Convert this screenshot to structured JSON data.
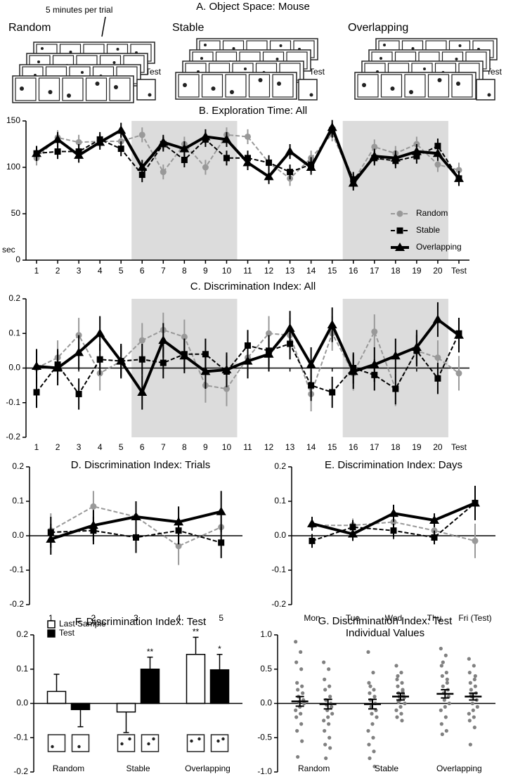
{
  "schematic": {
    "title": "A. Object Space: Mouse",
    "note": "5 minutes per trial",
    "groups": [
      {
        "label": "Random",
        "test": "Test"
      },
      {
        "label": "Stable",
        "test": "Test"
      },
      {
        "label": "Overlapping",
        "test": "Test"
      }
    ]
  },
  "chart_data": [
    {
      "type": "line",
      "title": "B. Exploration Time: All",
      "ylabel": "sec",
      "categories": [
        "1",
        "2",
        "3",
        "4",
        "5",
        "6",
        "7",
        "8",
        "9",
        "10",
        "11",
        "12",
        "13",
        "14",
        "15",
        "16",
        "17",
        "18",
        "19",
        "20",
        "Test"
      ],
      "shaded": [
        {
          "from": "6",
          "to": "10"
        },
        {
          "from": "16",
          "to": "20"
        }
      ],
      "ylim": [
        0,
        150
      ],
      "yticks": [
        0,
        50,
        100,
        150
      ],
      "legend": "bottom-right",
      "series": [
        {
          "name": "Random",
          "color": "#999999",
          "marker": "circle",
          "dash": true,
          "values": [
            110,
            132,
            127,
            128,
            128,
            135,
            95,
            125,
            100,
            135,
            133,
            105,
            88,
            110,
            136,
            85,
            122,
            115,
            125,
            103,
            97
          ],
          "errors": [
            8,
            8,
            8,
            8,
            8,
            8,
            8,
            8,
            8,
            8,
            8,
            8,
            8,
            8,
            8,
            8,
            8,
            8,
            8,
            8,
            8
          ]
        },
        {
          "name": "Stable",
          "color": "#000000",
          "marker": "square",
          "dash": true,
          "values": [
            115,
            117,
            117,
            130,
            120,
            92,
            125,
            108,
            130,
            110,
            110,
            105,
            95,
            103,
            140,
            87,
            110,
            107,
            112,
            123,
            88
          ],
          "errors": [
            8,
            8,
            8,
            8,
            8,
            8,
            8,
            8,
            8,
            8,
            8,
            8,
            8,
            8,
            8,
            8,
            8,
            8,
            8,
            8,
            8
          ]
        },
        {
          "name": "Overlapping",
          "color": "#000000",
          "marker": "triangle",
          "dash": false,
          "values": [
            115,
            130,
            113,
            127,
            140,
            100,
            127,
            120,
            133,
            130,
            105,
            90,
            117,
            100,
            143,
            83,
            112,
            110,
            117,
            115,
            88
          ],
          "errors": [
            8,
            8,
            8,
            8,
            8,
            8,
            8,
            8,
            8,
            8,
            8,
            8,
            8,
            8,
            8,
            8,
            8,
            8,
            8,
            8,
            8
          ]
        }
      ]
    },
    {
      "type": "line",
      "title": "C. Discrimination Index: All",
      "categories": [
        "1",
        "2",
        "3",
        "4",
        "5",
        "6",
        "7",
        "8",
        "9",
        "10",
        "11",
        "12",
        "13",
        "14",
        "15",
        "16",
        "17",
        "18",
        "19",
        "20",
        "Test"
      ],
      "shaded": [
        {
          "from": "6",
          "to": "10"
        },
        {
          "from": "16",
          "to": "20"
        }
      ],
      "ylim": [
        -0.2,
        0.2
      ],
      "yticks": [
        -0.2,
        -0.1,
        {
          "value": 0,
          "label": "0.0"
        },
        0.1,
        0.2
      ],
      "series": [
        {
          "color": "#999999",
          "marker": "circle",
          "dash": true,
          "values": [
            0.0,
            0.03,
            0.095,
            -0.015,
            0.02,
            0.08,
            0.11,
            0.09,
            -0.05,
            -0.06,
            0.03,
            0.1,
            0.095,
            -0.075,
            0.1,
            -0.015,
            0.105,
            -0.06,
            0.05,
            0.03,
            -0.015
          ],
          "errors": [
            0.05,
            0.05,
            0.05,
            0.05,
            0.05,
            0.05,
            0.05,
            0.05,
            0.05,
            0.05,
            0.05,
            0.05,
            0.05,
            0.05,
            0.05,
            0.05,
            0.05,
            0.05,
            0.05,
            0.05,
            0.05
          ]
        },
        {
          "color": "#000000",
          "marker": "square",
          "dash": true,
          "values": [
            -0.07,
            0.01,
            -0.075,
            0.025,
            0.02,
            0.025,
            0.015,
            0.04,
            0.04,
            -0.01,
            0.065,
            0.05,
            0.07,
            -0.05,
            -0.07,
            0.0,
            -0.02,
            -0.06,
            0.05,
            -0.03,
            0.1
          ],
          "errors": [
            0.045,
            0.045,
            0.045,
            0.045,
            0.045,
            0.045,
            0.045,
            0.045,
            0.045,
            0.045,
            0.045,
            0.045,
            0.045,
            0.045,
            0.045,
            0.045,
            0.045,
            0.045,
            0.045,
            0.045,
            0.045
          ]
        },
        {
          "color": "#000000",
          "marker": "triangle",
          "dash": false,
          "values": [
            0.005,
            0.0,
            0.045,
            0.1,
            0.02,
            -0.07,
            0.08,
            0.035,
            -0.01,
            -0.005,
            0.02,
            0.04,
            0.115,
            0.01,
            0.125,
            -0.01,
            0.01,
            0.035,
            0.06,
            0.14,
            0.095
          ],
          "errors": [
            0.05,
            0.05,
            0.05,
            0.05,
            0.05,
            0.05,
            0.05,
            0.05,
            0.05,
            0.05,
            0.05,
            0.05,
            0.05,
            0.05,
            0.05,
            0.05,
            0.05,
            0.05,
            0.05,
            0.05,
            0.05
          ]
        }
      ]
    },
    {
      "type": "line",
      "title": "D. Discrimination Index: Trials",
      "categories": [
        "1",
        "2",
        "3",
        "4",
        "5"
      ],
      "ylim": [
        -0.2,
        0.2
      ],
      "yticks": [
        -0.2,
        -0.1,
        {
          "value": 0,
          "label": "0.0"
        },
        0.1,
        0.2
      ],
      "series": [
        {
          "color": "#999999",
          "marker": "circle",
          "dash": true,
          "values": [
            0.015,
            0.085,
            0.055,
            -0.03,
            0.025
          ],
          "errors": [
            0.05,
            0.045,
            0.045,
            0.055,
            0.05
          ]
        },
        {
          "color": "#000000",
          "marker": "square",
          "dash": true,
          "values": [
            0.01,
            0.015,
            -0.005,
            0.015,
            -0.02
          ],
          "errors": [
            0.045,
            0.04,
            0.045,
            0.04,
            0.045
          ]
        },
        {
          "color": "#000000",
          "marker": "triangle",
          "dash": false,
          "values": [
            -0.01,
            0.03,
            0.055,
            0.04,
            0.07
          ],
          "errors": [
            0.045,
            0.045,
            0.045,
            0.045,
            0.06
          ]
        }
      ]
    },
    {
      "type": "line",
      "title": "E. Discrimination Index: Days",
      "categories": [
        "Mon",
        "Tue",
        "Wed",
        "Thu",
        "Fri (Test)"
      ],
      "ylim": [
        -0.2,
        0.2
      ],
      "yticks": [
        -0.2,
        -0.1,
        {
          "value": 0,
          "label": "0.0"
        },
        0.1,
        0.2
      ],
      "series": [
        {
          "color": "#999999",
          "marker": "circle",
          "dash": true,
          "values": [
            0.03,
            0.03,
            0.04,
            0.015,
            -0.015
          ],
          "errors": [
            0.015,
            0.02,
            0.02,
            0.02,
            0.05
          ]
        },
        {
          "color": "#000000",
          "marker": "square",
          "dash": true,
          "values": [
            -0.015,
            0.025,
            0.015,
            -0.005,
            0.095
          ],
          "errors": [
            0.02,
            0.02,
            0.02,
            0.02,
            0.035
          ]
        },
        {
          "color": "#000000",
          "marker": "triangle",
          "dash": false,
          "values": [
            0.035,
            0.005,
            0.065,
            0.045,
            0.095
          ],
          "errors": [
            0.02,
            0.02,
            0.025,
            0.02,
            0.05
          ]
        }
      ]
    },
    {
      "type": "bar",
      "title": "F. Discrimination Index: Test",
      "categories": [
        "Random",
        "Stable",
        "Overlapping"
      ],
      "ylim": [
        -0.2,
        0.2
      ],
      "yticks": [
        -0.2,
        -0.1,
        {
          "value": 0,
          "label": "0.0"
        },
        0.1,
        0.2
      ],
      "legend": "top-left",
      "series": [
        {
          "name": "Last Sample",
          "color": "#ffffff",
          "values": [
            0.035,
            -0.025,
            0.143
          ],
          "errors": [
            0.05,
            0.06,
            0.05
          ],
          "markers": [
            null,
            null,
            "**"
          ]
        },
        {
          "name": "Test",
          "color": "#000000",
          "values": [
            -0.018,
            0.1,
            0.098
          ],
          "errors": [
            0.05,
            0.035,
            0.045
          ],
          "markers": [
            null,
            "**",
            "*"
          ]
        }
      ]
    },
    {
      "type": "strip",
      "title": "G. Discrimination Index: Test",
      "subtitle": "Individual Values",
      "categories": [
        "Random",
        "Stable",
        "Overlapping"
      ],
      "color": "#808080",
      "ylim": [
        -1,
        1
      ],
      "yticks": [
        {
          "value": -1,
          "label": "-1.0"
        },
        -0.5,
        {
          "value": 0,
          "label": "0.0"
        },
        0.5,
        {
          "value": 1,
          "label": "1.0"
        }
      ],
      "groups": [
        {
          "points": [
            [
              0.9,
              0.75,
              0.6,
              0.5,
              0.3,
              0.25,
              0.2,
              0.15,
              0.1,
              0.05,
              0.02,
              0.0,
              -0.05,
              -0.1,
              -0.15,
              -0.2,
              -0.3,
              -0.4,
              -0.55,
              -0.78
            ],
            [
              0.6,
              0.5,
              0.35,
              0.25,
              0.2,
              0.1,
              0.05,
              0.0,
              -0.02,
              -0.05,
              -0.1,
              -0.15,
              -0.2,
              -0.25,
              -0.3,
              -0.4,
              -0.5,
              -0.6,
              -0.65,
              -0.8
            ]
          ],
          "means": [
            0.03,
            -0.01
          ],
          "errors": [
            0.07,
            0.07
          ]
        },
        {
          "points": [
            [
              0.75,
              0.45,
              0.3,
              0.2,
              0.15,
              0.1,
              0.05,
              0.0,
              -0.05,
              -0.1,
              -0.15,
              -0.2,
              -0.3,
              -0.4,
              -0.5,
              -0.6,
              -0.7,
              -0.8,
              -0.92,
              0.25
            ],
            [
              0.55,
              0.45,
              0.35,
              0.3,
              0.25,
              0.2,
              0.15,
              0.12,
              0.1,
              0.08,
              0.05,
              0.0,
              -0.05,
              -0.1,
              -0.15,
              -0.2,
              -0.25,
              0.4,
              0.18,
              0.02
            ]
          ],
          "means": [
            -0.01,
            0.1
          ],
          "errors": [
            0.07,
            0.05
          ]
        },
        {
          "points": [
            [
              0.8,
              0.7,
              0.55,
              0.45,
              0.4,
              0.3,
              0.25,
              0.2,
              0.15,
              0.1,
              0.05,
              0.0,
              -0.05,
              -0.1,
              -0.2,
              -0.3,
              -0.4,
              -0.45,
              0.35,
              0.6
            ],
            [
              0.65,
              0.55,
              0.45,
              0.35,
              0.3,
              0.25,
              0.2,
              0.15,
              0.1,
              0.05,
              0.0,
              -0.05,
              -0.1,
              -0.15,
              -0.2,
              -0.25,
              -0.35,
              -0.6,
              0.4,
              0.12
            ]
          ],
          "means": [
            0.14,
            0.1
          ],
          "errors": [
            0.06,
            0.05
          ]
        }
      ]
    }
  ]
}
